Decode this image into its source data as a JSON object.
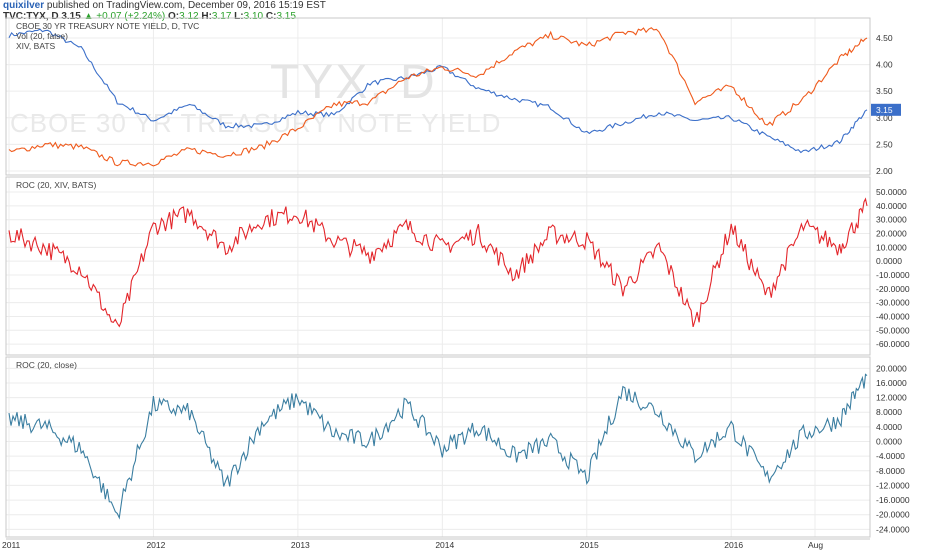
{
  "header": {
    "user": "quixilver",
    "published": "published on TradingView.com, December 09, 2016 15:19 EST",
    "symbol": "TVC:TYX, D",
    "last": "3.15",
    "up_arrow": "▲",
    "change": "+0.07 (+2.24%)",
    "o_label": "O:",
    "o_val": "3.12",
    "h_label": "H:",
    "h_val": "3.17",
    "l_label": "L:",
    "l_val": "3.10",
    "c_label": "C:",
    "c_val": "3.15"
  },
  "colors": {
    "tyx": "#3b6fc9",
    "xiv": "#ef5a1c",
    "roc_xiv": "#e3262b",
    "roc_close": "#3b7ea1",
    "badge": "#3b6fc9"
  },
  "chart_data": [
    {
      "type": "line",
      "title": "CBOE 30 YR TREASURY NOTE YIELD, D, TVC",
      "legend": [
        "Vol (20, false)",
        "XIV, BATS"
      ],
      "watermark_big": "TYX, D",
      "watermark_small": "CBOE 30 YR TREASURY NOTE YIELD",
      "y_ticks": [
        "4.50",
        "4.00",
        "3.50",
        "3.00",
        "2.50",
        "2.00"
      ],
      "ylim": [
        2.0,
        4.8
      ],
      "last_value_label": "3.15",
      "x": [
        2011.0,
        2011.25,
        2011.5,
        2011.75,
        2012.0,
        2012.25,
        2012.5,
        2012.75,
        2013.0,
        2013.25,
        2013.5,
        2013.75,
        2014.0,
        2014.25,
        2014.5,
        2014.75,
        2015.0,
        2015.25,
        2015.5,
        2015.75,
        2016.0,
        2016.25,
        2016.5,
        2016.75,
        2016.94
      ],
      "series": [
        {
          "name": "",
          "color_key": "tyx",
          "values": [
            4.55,
            4.65,
            4.3,
            3.3,
            2.95,
            3.25,
            2.85,
            2.85,
            3.1,
            3.05,
            3.65,
            3.75,
            3.95,
            3.55,
            3.35,
            3.2,
            2.7,
            2.9,
            3.1,
            2.95,
            3.0,
            2.65,
            2.35,
            2.55,
            3.15
          ]
        },
        {
          "name": "",
          "color_key": "xiv",
          "values": [
            2.35,
            2.5,
            2.45,
            2.15,
            2.15,
            2.4,
            2.3,
            2.45,
            2.8,
            3.25,
            3.3,
            3.75,
            3.95,
            3.8,
            4.25,
            4.55,
            4.35,
            4.6,
            4.65,
            3.3,
            3.6,
            2.85,
            3.35,
            4.1,
            4.5
          ]
        }
      ]
    },
    {
      "type": "line",
      "title": "ROC (20, XIV, BATS)",
      "y_ticks": [
        "50.0000",
        "40.0000",
        "30.0000",
        "20.0000",
        "10.0000",
        "0.0000",
        "-10.0000",
        "-20.0000",
        "-30.0000",
        "-40.0000",
        "-50.0000",
        "-60.0000"
      ],
      "ylim": [
        -65,
        58
      ],
      "x": [
        2011.0,
        2011.25,
        2011.5,
        2011.75,
        2012.0,
        2012.25,
        2012.5,
        2012.75,
        2013.0,
        2013.25,
        2013.5,
        2013.75,
        2014.0,
        2014.25,
        2014.5,
        2014.75,
        2015.0,
        2015.25,
        2015.5,
        2015.75,
        2016.0,
        2016.25,
        2016.5,
        2016.75,
        2016.94
      ],
      "series": [
        {
          "name": "",
          "color_key": "roc_xiv",
          "values": [
            20,
            10,
            -5,
            -50,
            25,
            35,
            10,
            30,
            35,
            15,
            5,
            25,
            10,
            20,
            -10,
            20,
            15,
            -20,
            10,
            -45,
            25,
            -25,
            25,
            10,
            40
          ]
        }
      ]
    },
    {
      "type": "line",
      "title": "ROC (20, close)",
      "y_ticks": [
        "20.0000",
        "16.0000",
        "12.0000",
        "8.0000",
        "4.0000",
        "0.0000",
        "-4.0000",
        "-8.0000",
        "-12.0000",
        "-16.0000",
        "-20.0000",
        "-24.0000"
      ],
      "ylim": [
        -25,
        22
      ],
      "x": [
        2011.0,
        2011.25,
        2011.5,
        2011.75,
        2012.0,
        2012.25,
        2012.5,
        2012.75,
        2013.0,
        2013.25,
        2013.5,
        2013.75,
        2014.0,
        2014.25,
        2014.5,
        2014.75,
        2015.0,
        2015.25,
        2015.5,
        2015.75,
        2016.0,
        2016.25,
        2016.5,
        2016.75,
        2016.94
      ],
      "series": [
        {
          "name": "",
          "color_key": "roc_close",
          "values": [
            6,
            4,
            -2,
            -20,
            10,
            8,
            -12,
            5,
            12,
            2,
            0,
            10,
            -2,
            4,
            -4,
            0,
            -10,
            14,
            8,
            -4,
            4,
            -10,
            2,
            6,
            18
          ]
        }
      ]
    }
  ],
  "x_axis": {
    "labels": [
      "2011",
      "2012",
      "2013",
      "2014",
      "2015",
      "2016",
      "Aug"
    ],
    "positions": [
      2011.0,
      2012.0,
      2013.0,
      2014.0,
      2015.0,
      2016.0,
      2016.58
    ]
  }
}
